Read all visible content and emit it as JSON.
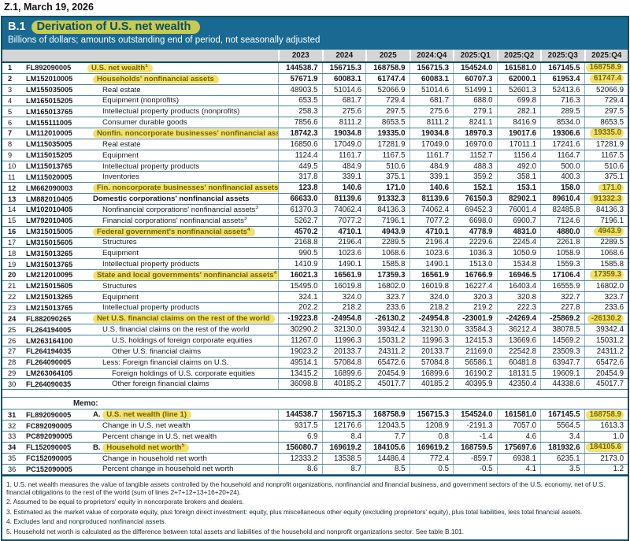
{
  "report": {
    "masthead": "Z.1, March 19, 2026",
    "table_id": "B.1",
    "title": "Derivation of U.S. net wealth",
    "subtitle": "Billions of dollars; amounts outstanding end of period, not seasonally adjusted",
    "memo_heading": "Memo:"
  },
  "colors": {
    "band_teal": "#196992",
    "border_teal": "#0e5066",
    "header_gray": "#d5d5d5",
    "highlight_yellow": "#f3e26b",
    "title_highlight_green": "#c7cb52"
  },
  "columns": [
    "2023",
    "2024",
    "2025",
    "2024:Q4",
    "2025:Q1",
    "2025:Q2",
    "2025:Q3",
    "2025:Q4"
  ],
  "rows": [
    {
      "line": "1",
      "code": "FL892090005",
      "label": "U.S. net wealth",
      "sup": "1",
      "indent": 0,
      "bold": true,
      "hl_label": true,
      "hl_last": true,
      "values": [
        "144538.7",
        "156715.3",
        "168758.9",
        "156715.3",
        "154524.0",
        "161581.0",
        "167145.5",
        "168758.9"
      ]
    },
    {
      "line": "2",
      "code": "LM152010005",
      "label": "Households' nonfinancial assets",
      "indent": 1,
      "bold": true,
      "hl_label": true,
      "hl_last": true,
      "values": [
        "57671.9",
        "60083.1",
        "61747.4",
        "60083.1",
        "60707.3",
        "62000.1",
        "61953.4",
        "61747.4"
      ]
    },
    {
      "line": "3",
      "code": "LM155035005",
      "label": "Real estate",
      "indent": 2,
      "values": [
        "48903.5",
        "51014.6",
        "52066.9",
        "51014.6",
        "51499.1",
        "52601.3",
        "52413.6",
        "52066.9"
      ]
    },
    {
      "line": "4",
      "code": "LM165015205",
      "label": "Equipment (nonprofits)",
      "indent": 2,
      "values": [
        "653.5",
        "681.7",
        "729.4",
        "681.7",
        "688.0",
        "699.8",
        "716.3",
        "729.4"
      ]
    },
    {
      "line": "5",
      "code": "LM165013765",
      "label": "Intellectual property products (nonprofits)",
      "indent": 2,
      "values": [
        "258.3",
        "275.6",
        "297.5",
        "275.6",
        "279.1",
        "282.1",
        "289.5",
        "297.5"
      ]
    },
    {
      "line": "6",
      "code": "LM155111005",
      "label": "Consumer durable goods",
      "indent": 2,
      "values": [
        "7856.6",
        "8111.2",
        "8653.5",
        "8111.2",
        "8241.1",
        "8416.9",
        "8534.0",
        "8653.5"
      ]
    },
    {
      "line": "7",
      "code": "LM112010005",
      "label": "Nonfin. noncorporate businesses' nonfinancial assets",
      "indent": 1,
      "bold": true,
      "hl_label": true,
      "hl_last": true,
      "values": [
        "18742.3",
        "19034.8",
        "19335.0",
        "19034.8",
        "18970.3",
        "19017.6",
        "19306.6",
        "19335.0"
      ]
    },
    {
      "line": "8",
      "code": "LM115035005",
      "label": "Real estate",
      "indent": 2,
      "values": [
        "16850.6",
        "17049.0",
        "17281.9",
        "17049.0",
        "16970.0",
        "17011.1",
        "17241.6",
        "17281.9"
      ]
    },
    {
      "line": "9",
      "code": "LM115015205",
      "label": "Equipment",
      "indent": 2,
      "values": [
        "1124.4",
        "1161.7",
        "1167.5",
        "1161.7",
        "1152.7",
        "1156.4",
        "1164.7",
        "1167.5"
      ]
    },
    {
      "line": "10",
      "code": "LM115013765",
      "label": "Intellectual property products",
      "indent": 2,
      "values": [
        "449.5",
        "484.9",
        "510.6",
        "484.9",
        "488.3",
        "492.0",
        "500.0",
        "510.6"
      ]
    },
    {
      "line": "11",
      "code": "LM115020005",
      "label": "Inventories",
      "indent": 2,
      "values": [
        "317.8",
        "339.1",
        "375.1",
        "339.1",
        "359.2",
        "358.1",
        "400.3",
        "375.1"
      ]
    },
    {
      "line": "12",
      "code": "LM662090003",
      "label": "Fin. noncorporate businesses' nonfinancial assets",
      "sup": "2",
      "indent": 1,
      "bold": true,
      "hl_label": true,
      "hl_last": true,
      "values": [
        "123.8",
        "140.6",
        "171.0",
        "140.6",
        "152.1",
        "153.1",
        "158.0",
        "171.0"
      ]
    },
    {
      "line": "13",
      "code": "LM882010405",
      "label": "Domestic corporations' nonfinancial assets",
      "indent": 1,
      "bold": true,
      "hl_last": true,
      "values": [
        "66633.0",
        "81139.6",
        "91332.3",
        "81139.6",
        "76150.3",
        "82902.1",
        "89610.4",
        "91332.3"
      ]
    },
    {
      "line": "14",
      "code": "LM102010405",
      "label": "Nonfinancial corporations' nonfinancial assets",
      "sup": "3",
      "indent": 2,
      "values": [
        "61370.3",
        "74062.4",
        "84136.3",
        "74062.4",
        "69452.3",
        "76001.4",
        "82485.8",
        "84136.3"
      ]
    },
    {
      "line": "15",
      "code": "LM792010405",
      "label": "Financial corporations' nonfinancial assets",
      "sup": "3",
      "indent": 2,
      "values": [
        "5262.7",
        "7077.2",
        "7196.1",
        "7077.2",
        "6698.0",
        "6900.7",
        "7124.6",
        "7196.1"
      ]
    },
    {
      "line": "16",
      "code": "LM315015005",
      "label": "Federal government's nonfinancial assets",
      "sup": "4",
      "indent": 1,
      "bold": true,
      "hl_label": true,
      "hl_last": true,
      "values": [
        "4570.2",
        "4710.1",
        "4943.9",
        "4710.1",
        "4778.9",
        "4831.0",
        "4880.0",
        "4943.9"
      ]
    },
    {
      "line": "17",
      "code": "LM315015605",
      "label": "Structures",
      "indent": 2,
      "values": [
        "2168.8",
        "2196.4",
        "2289.5",
        "2196.4",
        "2229.6",
        "2245.4",
        "2261.8",
        "2289.5"
      ]
    },
    {
      "line": "18",
      "code": "LM315013265",
      "label": "Equipment",
      "indent": 2,
      "values": [
        "990.5",
        "1023.6",
        "1068.6",
        "1023.6",
        "1036.3",
        "1050.9",
        "1058.9",
        "1068.6"
      ]
    },
    {
      "line": "19",
      "code": "LM315013765",
      "label": "Intellectual property products",
      "indent": 2,
      "values": [
        "1410.9",
        "1490.1",
        "1585.8",
        "1490.1",
        "1513.0",
        "1534.8",
        "1559.3",
        "1585.8"
      ]
    },
    {
      "line": "20",
      "code": "LM212010095",
      "label": "State and local governments' nonfinancial assets",
      "sup": "4",
      "indent": 1,
      "bold": true,
      "hl_label": true,
      "hl_last": true,
      "values": [
        "16021.3",
        "16561.9",
        "17359.3",
        "16561.9",
        "16766.9",
        "16946.5",
        "17106.4",
        "17359.3"
      ]
    },
    {
      "line": "21",
      "code": "LM215015605",
      "label": "Structures",
      "indent": 2,
      "values": [
        "15495.0",
        "16019.8",
        "16802.0",
        "16019.8",
        "16227.4",
        "16403.4",
        "16555.9",
        "16802.0"
      ]
    },
    {
      "line": "22",
      "code": "LM215013265",
      "label": "Equipment",
      "indent": 2,
      "values": [
        "324.1",
        "324.0",
        "323.7",
        "324.0",
        "320.3",
        "320.8",
        "322.7",
        "323.7"
      ]
    },
    {
      "line": "23",
      "code": "LM215013765",
      "label": "Intellectual property products",
      "indent": 2,
      "values": [
        "202.2",
        "218.2",
        "233.6",
        "218.2",
        "219.2",
        "222.3",
        "227.8",
        "233.6"
      ]
    },
    {
      "line": "24",
      "code": "FL882090265",
      "label": "Net U.S. financial claims on the rest of the world",
      "indent": 1,
      "bold": true,
      "hl_label": true,
      "hl_last": true,
      "values": [
        "-19223.8",
        "-24954.8",
        "-26130.2",
        "-24954.8",
        "-23001.9",
        "-24269.4",
        "-25869.2",
        "-26130.2"
      ]
    },
    {
      "line": "25",
      "code": "FL264194005",
      "label": "U.S. financial claims on the rest of the world",
      "indent": 2,
      "values": [
        "30290.2",
        "32130.0",
        "39342.4",
        "32130.0",
        "33584.3",
        "36212.4",
        "38078.5",
        "39342.4"
      ]
    },
    {
      "line": "26",
      "code": "LM263164100",
      "label": "U.S. holdings of foreign corporate equities",
      "indent": 3,
      "values": [
        "11267.0",
        "11996.3",
        "15031.2",
        "11996.3",
        "12415.3",
        "13669.6",
        "14569.2",
        "15031.2"
      ]
    },
    {
      "line": "27",
      "code": "FL264194035",
      "label": "Other U.S. financial claims",
      "indent": 3,
      "values": [
        "19023.2",
        "20133.7",
        "24311.2",
        "20133.7",
        "21169.0",
        "22542.8",
        "23509.3",
        "24311.2"
      ]
    },
    {
      "line": "28",
      "code": "FL264090005",
      "label": "Less: Foreign financial claims on U.S.",
      "indent": 2,
      "values": [
        "49514.1",
        "57084.8",
        "65472.6",
        "57084.8",
        "56586.1",
        "60481.8",
        "63947.7",
        "65472.6"
      ]
    },
    {
      "line": "29",
      "code": "LM263064105",
      "label": "Foreign holdings of U.S. corporate equities",
      "indent": 3,
      "values": [
        "13415.2",
        "16899.6",
        "20454.9",
        "16899.6",
        "16190.2",
        "18131.5",
        "19609.1",
        "20454.9"
      ]
    },
    {
      "line": "30",
      "code": "FL264090035",
      "label": "Other foreign financial claims",
      "indent": 3,
      "values": [
        "36098.8",
        "40185.2",
        "45017.7",
        "40185.2",
        "40395.9",
        "42350.4",
        "44338.6",
        "45017.7"
      ]
    },
    {
      "line": "31",
      "code": "FL892090005",
      "label": "U.S. net wealth (line 1)",
      "prefix": "A.",
      "indent": 1,
      "bold": true,
      "hl_label": true,
      "hl_last": true,
      "memo_start": true,
      "values": [
        "144538.7",
        "156715.3",
        "168758.9",
        "156715.3",
        "154524.0",
        "161581.0",
        "167145.5",
        "168758.9"
      ]
    },
    {
      "line": "32",
      "code": "FC892090005",
      "label": "Change in U.S. net wealth",
      "indent": 2,
      "values": [
        "9317.5",
        "12176.6",
        "12043.5",
        "1208.9",
        "-2191.3",
        "7057.0",
        "5564.5",
        "1613.3"
      ]
    },
    {
      "line": "33",
      "code": "PC892090005",
      "label": "Percent change in U.S. net wealth",
      "indent": 2,
      "values": [
        "6.9",
        "8.4",
        "7.7",
        "0.8",
        "-1.4",
        "4.6",
        "3.4",
        "1.0"
      ]
    },
    {
      "line": "34",
      "code": "FL152090005",
      "label": "Household net worth",
      "sup": "5",
      "prefix": "B.",
      "indent": 1,
      "bold": true,
      "hl_label": true,
      "hl_last": true,
      "values": [
        "156080.7",
        "169619.2",
        "184105.6",
        "169619.2",
        "168759.5",
        "175697.6",
        "181932.6",
        "184105.6"
      ]
    },
    {
      "line": "35",
      "code": "FC152090005",
      "label": "Change in household net worth",
      "indent": 2,
      "values": [
        "12333.2",
        "13538.5",
        "14486.4",
        "772.4",
        "-859.7",
        "6938.1",
        "6235.1",
        "2173.0"
      ]
    },
    {
      "line": "36",
      "code": "PC152090005",
      "label": "Percent change in household net worth",
      "indent": 2,
      "values": [
        "8.6",
        "8.7",
        "8.5",
        "0.5",
        "-0.5",
        "4.1",
        "3.5",
        "1.2"
      ]
    }
  ],
  "footnotes": [
    "1. U.S. net wealth measures the value of tangible assets controlled by the household and nonprofit organizations, nonfinancial and financial business, and government sectors of the U.S. economy, net of U.S. financial obligations to the rest of the world (sum of lines 2+7+12+13+16+20+24).",
    "2. Assumed to be equal to proprietors' equity in noncorporate brokers and dealers.",
    "3. Estimated as the market value of corporate equity, plus foreign direct investment: equity, plus miscellaneous other equity (excluding proprietors' equity), plus total liabilities, less total financial assets.",
    "4. Excludes land and nonproduced nonfinancial assets.",
    "5. Household net worth is calculated as the difference between total assets and liabilities of the household and nonprofit organizations sector. See table B.101."
  ]
}
